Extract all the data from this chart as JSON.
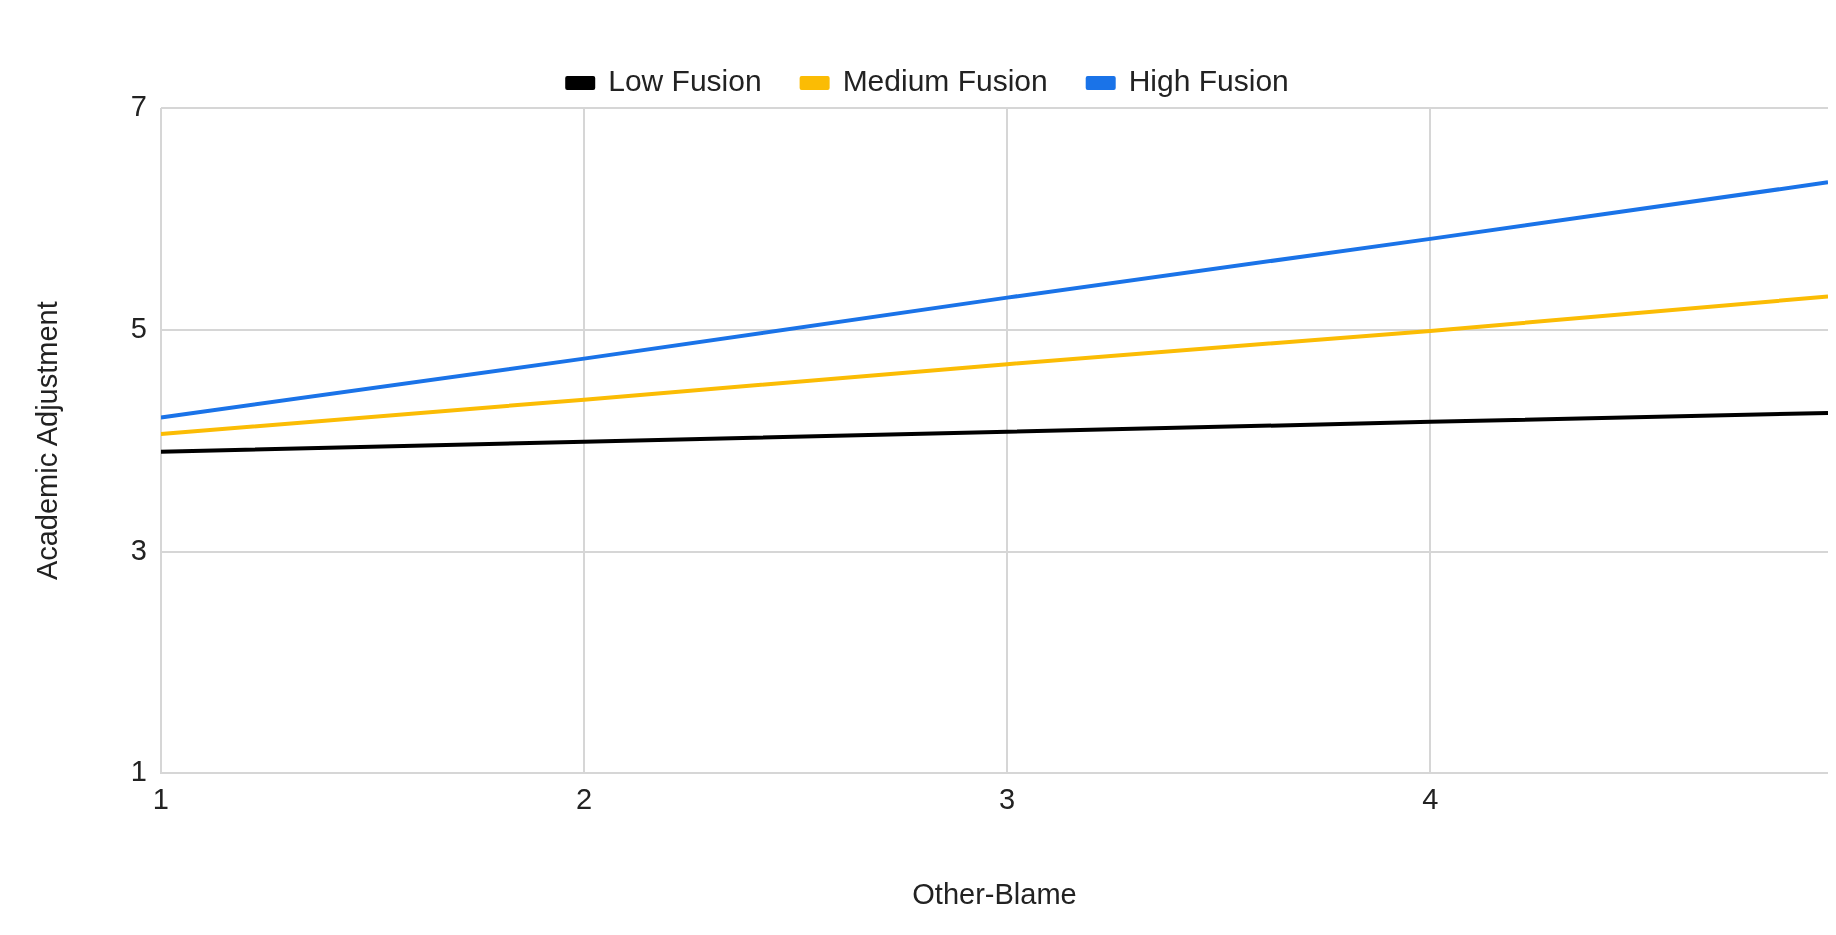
{
  "chart_data": {
    "type": "line",
    "xlabel": "Other-Blame",
    "ylabel": "Academic Adjustment",
    "x": [
      1,
      2,
      3,
      4,
      4.94
    ],
    "series": [
      {
        "name": "Low Fusion",
        "color": "#000000",
        "values": [
          3.9,
          3.99,
          4.08,
          4.17,
          4.25
        ]
      },
      {
        "name": "Medium Fusion",
        "color": "#fbbc04",
        "values": [
          4.06,
          4.37,
          4.69,
          4.99,
          5.3
        ]
      },
      {
        "name": "High Fusion",
        "color": "#1a73e8",
        "values": [
          4.21,
          4.74,
          5.29,
          5.82,
          6.33
        ]
      }
    ],
    "xlim": [
      1,
      4.94
    ],
    "xticks": [
      1,
      2,
      3,
      4
    ],
    "ylim": [
      1,
      7
    ],
    "yticks": [
      1,
      3,
      5,
      7
    ],
    "grid": true,
    "legend": "top",
    "marker": "none",
    "line_style": "solid"
  }
}
